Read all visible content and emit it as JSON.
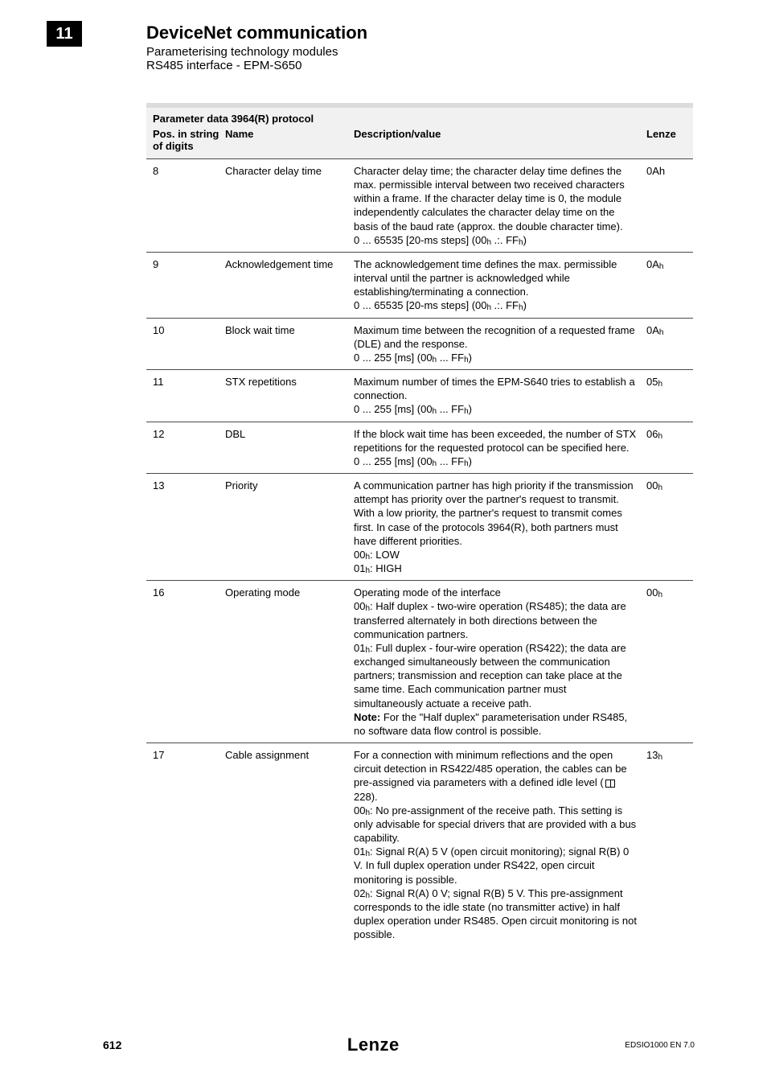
{
  "chapter_number": "11",
  "header": {
    "title": "DeviceNet communication",
    "sub1": "Parameterising technology modules",
    "sub2": "RS485 interface - EPM-S650"
  },
  "table": {
    "title": "Parameter data 3964(R) protocol",
    "columns": {
      "c1": "Pos. in string of digits",
      "c2": "Name",
      "c3": "Description/value",
      "c4": "Lenze"
    },
    "rows": [
      {
        "pos": "8",
        "name": "Character delay time",
        "desc": "Character delay time; the character delay time defines the max. permissible interval between two received characters within a frame. If the character delay time is 0, the module independently calculates the character delay time on the basis of the baud rate (approx. the double character time).\n0 ... 65535 [20-ms steps] (00_h .:. FF_h)",
        "lenze": "0Ah"
      },
      {
        "pos": "9",
        "name": "Acknowledgement time",
        "desc": "The acknowledgement time defines the max. permissible interval until the partner is acknowledged while establishing/terminating a connection.\n0 ... 65535 [20-ms steps] (00_h .:. FF_h)",
        "lenze": "0A_h"
      },
      {
        "pos": "10",
        "name": "Block wait time",
        "desc": "Maximum time between the recognition of a requested frame (DLE) and the response.\n0 ... 255 [ms] (00_h ... FF_h)",
        "lenze": "0A_h"
      },
      {
        "pos": "11",
        "name": "STX repetitions",
        "desc": "Maximum number of times the EPM-S640 tries to establish a connection.\n0 ... 255 [ms] (00_h ... FF_h)",
        "lenze": "05_h"
      },
      {
        "pos": "12",
        "name": "DBL",
        "desc": "If the block wait time has been exceeded, the number of STX repetitions for the requested protocol can be specified here.\n0 ... 255 [ms] (00_h ... FF_h)",
        "lenze": "06_h"
      },
      {
        "pos": "13",
        "name": "Priority",
        "desc": "A communication partner has high priority if the transmission attempt has priority over the partner's request to transmit. With a low priority, the partner's request to transmit comes first. In case of the protocols 3964(R), both partners must have different priorities.\n00_h: LOW\n01_h: HIGH",
        "lenze": "00_h"
      },
      {
        "pos": "16",
        "name": "Operating mode",
        "desc": "Operating mode of the interface\n00_h: Half duplex - two-wire operation (RS485); the data are transferred alternately in both directions between the communication partners.\n01_h: Full duplex - four-wire operation (RS422); the data are exchanged simultaneously between the communication partners; transmission and reception can take place at the same time. Each communication partner must simultaneously actuate a receive path.\n**Note:** For the \"Half duplex\" parameterisation under RS485, no software data flow control is possible.",
        "lenze": "00_h"
      },
      {
        "pos": "17",
        "name": "Cable assignment",
        "desc": "For a connection with minimum reflections and the open circuit detection in RS422/485 operation, the cables can be pre-assigned via parameters with a defined idle level ([book] 228).\n00_h: No pre-assignment of the receive path. This setting is only advisable for special drivers that are provided with a bus capability.\n01_h: Signal R(A) 5 V (open circuit monitoring); signal R(B) 0 V. In full duplex operation under RS422, open circuit monitoring is possible.\n02_h: Signal R(A) 0  V; signal R(B) 5 V. This pre-assignment corresponds to the idle state (no transmitter active) in half duplex operation under RS485. Open circuit monitoring is not possible.",
        "lenze": "13_h"
      }
    ]
  },
  "footer": {
    "page": "612",
    "brand": "Lenze",
    "doc": "EDSIO1000 EN 7.0"
  }
}
